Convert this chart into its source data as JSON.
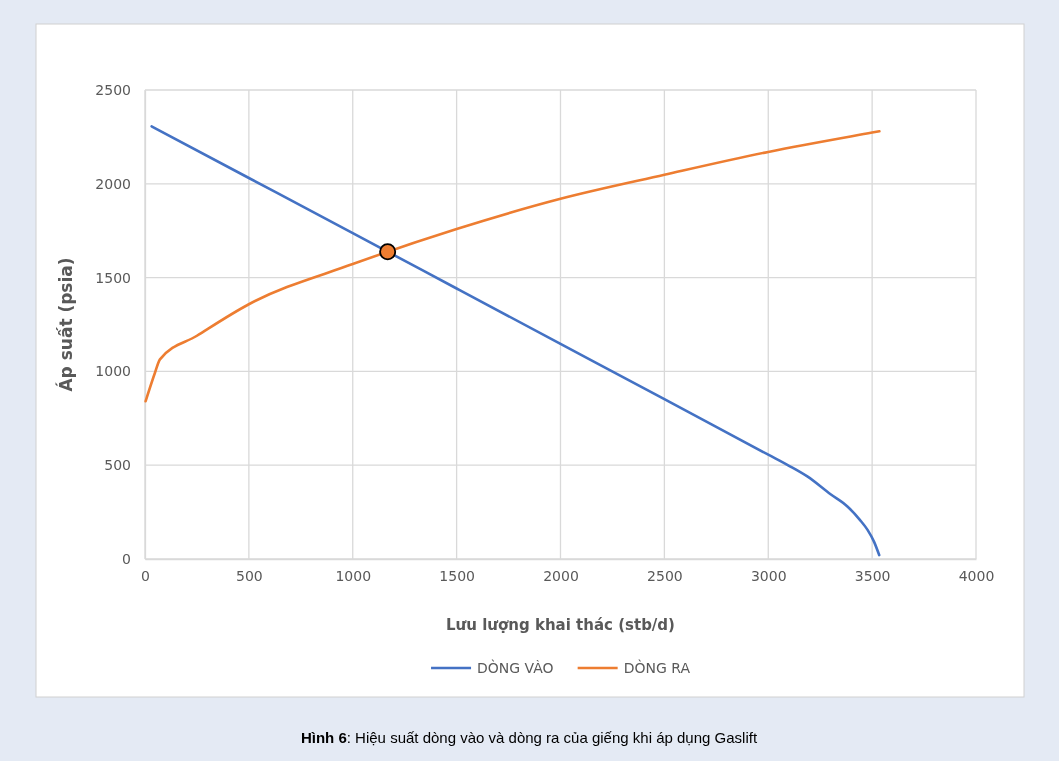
{
  "chart_data": {
    "type": "line",
    "xlabel": "Lưu lượng khai thác (stb/d)",
    "ylabel": "Áp suất (psia)",
    "xlim": [
      0,
      4000
    ],
    "xticks": [
      0,
      500,
      1000,
      1500,
      2000,
      2500,
      3000,
      3500,
      4000
    ],
    "ylim": [
      0,
      2500
    ],
    "yticks": [
      0,
      500,
      1000,
      1500,
      2000,
      2500
    ],
    "grid": true,
    "legend": "bottom",
    "marker": "none",
    "line_style": "solid",
    "series": [
      {
        "name": "DÒNG VÀO",
        "color": "#4472c4",
        "x": [
          32,
          500,
          1000,
          1500,
          2000,
          2500,
          3000,
          3100,
          3188,
          3300,
          3381,
          3440,
          3478,
          3510,
          3534
        ],
        "values": [
          2306,
          2031,
          1737,
          1442,
          1147,
          852,
          556,
          497,
          440,
          345,
          280,
          210,
          155,
          90,
          21
        ]
      },
      {
        "name": "DÒNG RA",
        "color": "#ed7d31",
        "x": [
          3,
          48,
          72,
          250,
          500,
          1000,
          1500,
          2000,
          2500,
          3000,
          3500,
          3535
        ],
        "values": [
          841,
          993,
          1064,
          1190,
          1358,
          1572,
          1759,
          1920,
          2048,
          2170,
          2273,
          2280
        ]
      },
      {
        "type": "scatter",
        "color": "#ed7d31",
        "marker": "circle",
        "x": [
          1168
        ],
        "values": [
          1638
        ]
      }
    ],
    "annotations": [
      "Hình 6: Hiệu suất dòng vào và dòng ra của giếng khi áp dụng Gaslift"
    ]
  }
}
